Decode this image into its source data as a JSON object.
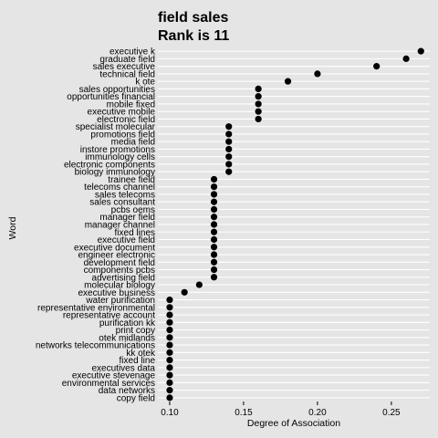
{
  "chart_data": {
    "type": "scatter",
    "title": "field sales",
    "subtitle": "Rank is 11",
    "xlabel": "Degree of Association",
    "ylabel": "Word",
    "xlim": [
      0.092,
      0.276
    ],
    "xticks": [
      0.1,
      0.15,
      0.2,
      0.25
    ],
    "xtick_labels": [
      "0.10",
      "0.15",
      "0.20",
      "0.25"
    ],
    "grid": "horizontal",
    "point_color": "#000000",
    "background_color": "#e5e5e5",
    "categories": [
      "executive k",
      "graduate field",
      "sales executive",
      "technical field",
      "k ote",
      "sales opportunities",
      "opportunities financial",
      "mobile fixed",
      "executive mobile",
      "electronic field",
      "specialist molecular",
      "promotions field",
      "media field",
      "instore promotions",
      "immunology cells",
      "electronic components",
      "biology immunology",
      "trainee field",
      "telecoms channel",
      "sales telecoms",
      "sales consultant",
      "pcbs oems",
      "manager field",
      "manager channel",
      "fixed lines",
      "executive field",
      "executive document",
      "engineer electronic",
      "development field",
      "components pcbs",
      "advertising field",
      "molecular biology",
      "executive business",
      "water purification",
      "representative environmental",
      "representative account",
      "purification kk",
      "print copy",
      "otek midlands",
      "networks telecommunications",
      "kk otek",
      "fixed line",
      "executives data",
      "executive stevenage",
      "environmental services",
      "data networks",
      "copy field"
    ],
    "values": [
      0.27,
      0.26,
      0.24,
      0.2,
      0.18,
      0.16,
      0.16,
      0.16,
      0.16,
      0.16,
      0.14,
      0.14,
      0.14,
      0.14,
      0.14,
      0.14,
      0.14,
      0.13,
      0.13,
      0.13,
      0.13,
      0.13,
      0.13,
      0.13,
      0.13,
      0.13,
      0.13,
      0.13,
      0.13,
      0.13,
      0.13,
      0.12,
      0.11,
      0.1,
      0.1,
      0.1,
      0.1,
      0.1,
      0.1,
      0.1,
      0.1,
      0.1,
      0.1,
      0.1,
      0.1,
      0.1,
      0.1
    ]
  }
}
